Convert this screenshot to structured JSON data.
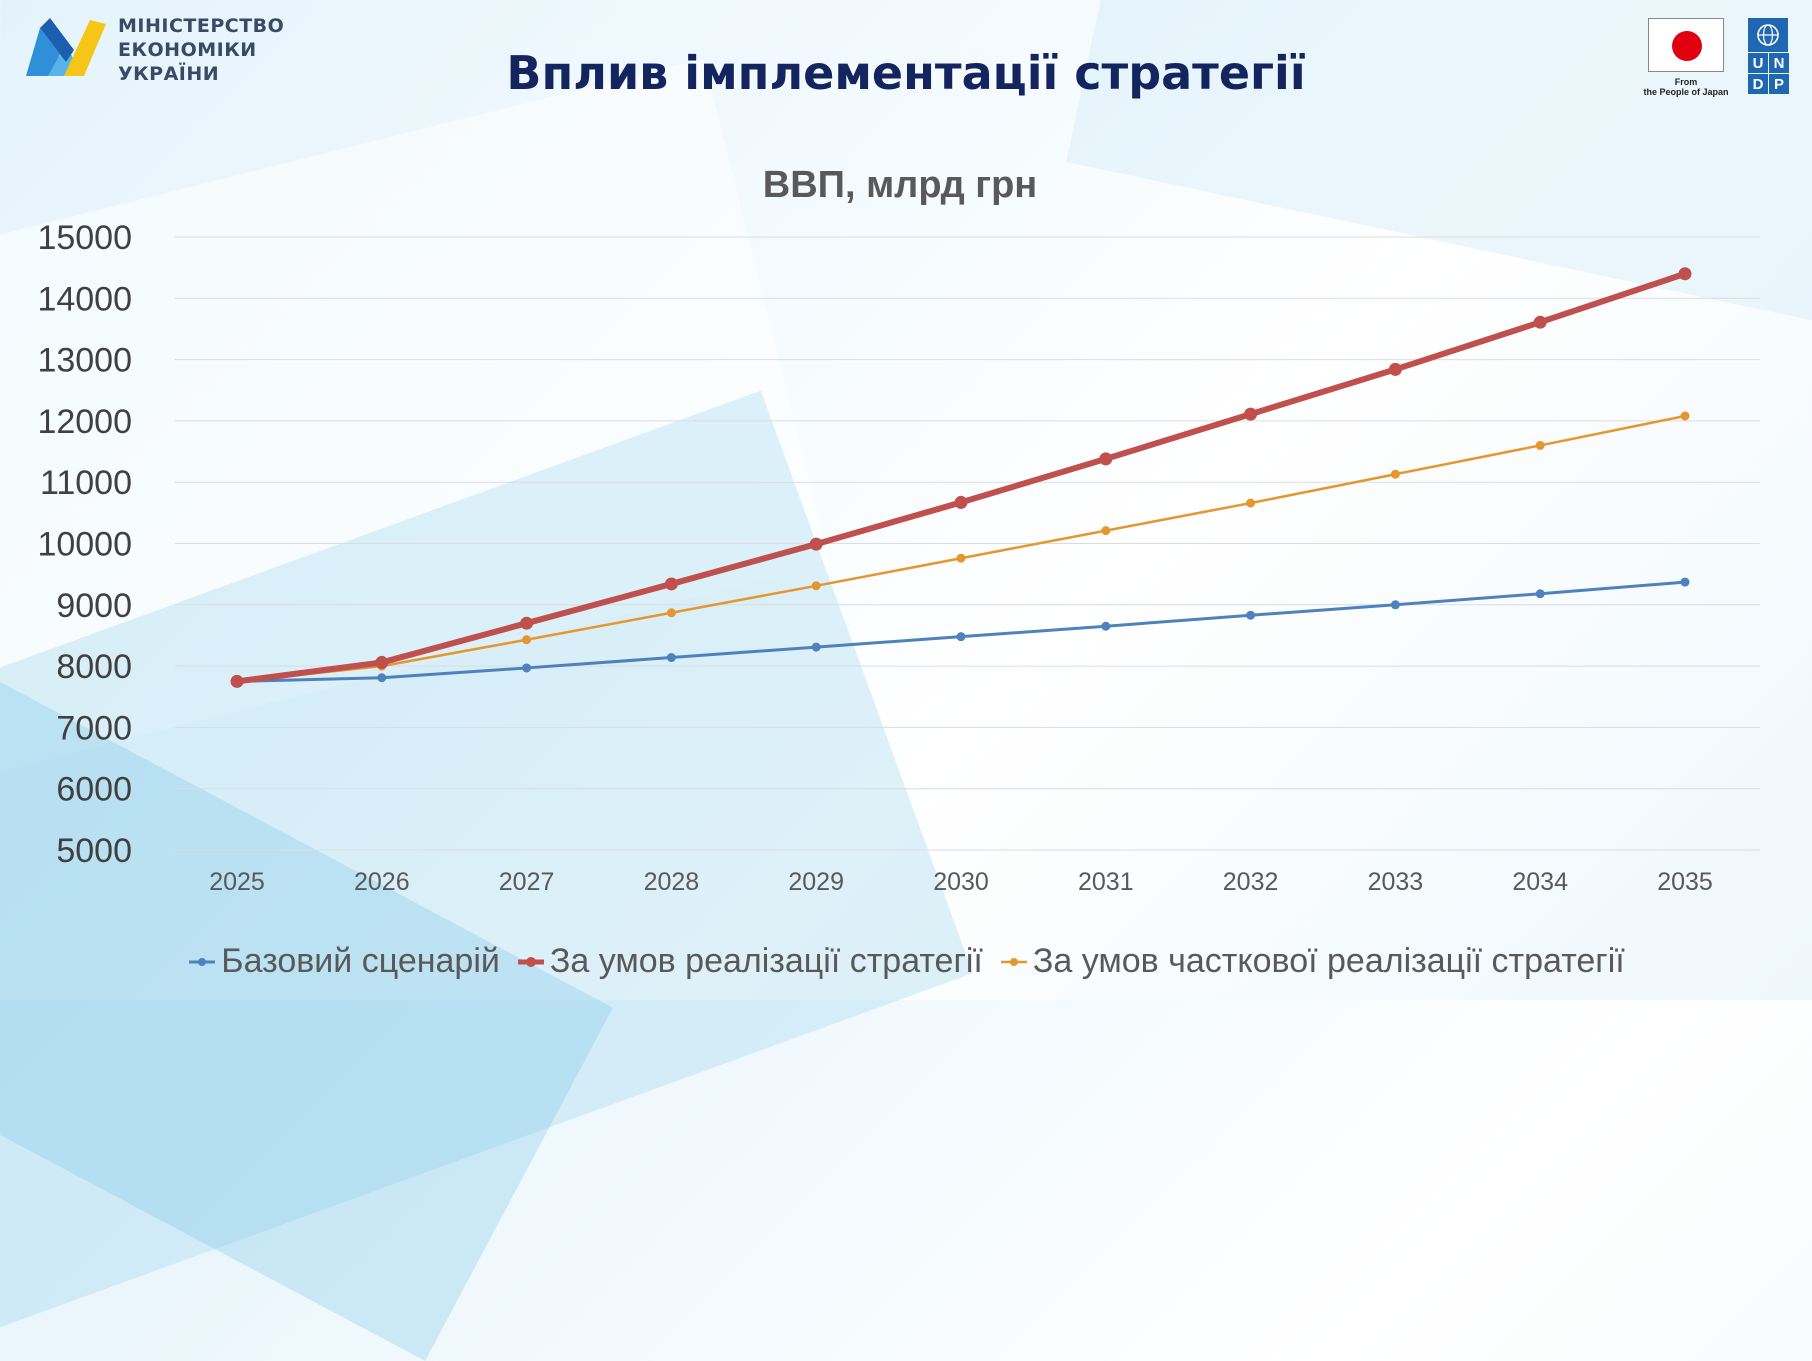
{
  "header": {
    "ministry_lines": [
      "МІНІСТЕРСТВО",
      "ЕКОНОМІКИ",
      "УКРАЇНИ"
    ],
    "title": "Вплив імплементації стратегії",
    "partner_caption_1": "From",
    "partner_caption_2": "the People of Japan",
    "undp_letters": [
      "U",
      "N",
      "D",
      "P"
    ]
  },
  "colors": {
    "title": "#13245e",
    "base": "#4f81bd",
    "full": "#c0504d",
    "partial": "#e5962f",
    "japan_red": "#e00010",
    "undp_blue": "#1f67b1"
  },
  "chart_data": {
    "type": "line",
    "title": "ВВП, млрд грн",
    "categories": [
      "2025",
      "2026",
      "2027",
      "2028",
      "2029",
      "2030",
      "2031",
      "2032",
      "2033",
      "2034",
      "2035"
    ],
    "ylim": [
      5000,
      15000
    ],
    "yticks": [
      5000,
      6000,
      7000,
      8000,
      9000,
      10000,
      11000,
      12000,
      13000,
      14000,
      15000
    ],
    "grid": true,
    "legend_position": "bottom",
    "series": [
      {
        "name": "Базовий сценарій",
        "color": "#4f81bd",
        "width": 3,
        "marker": 4,
        "values": [
          7750,
          7810,
          7970,
          8140,
          8310,
          8480,
          8650,
          8830,
          9000,
          9180,
          9370
        ]
      },
      {
        "name": "За умов реалізації стратегії",
        "color": "#c0504d",
        "width": 6,
        "marker": 6,
        "values": [
          7750,
          8060,
          8700,
          9340,
          9990,
          10670,
          11380,
          12110,
          12840,
          13610,
          14400
        ]
      },
      {
        "name": "За умов часткової реалізації стратегії",
        "color": "#e5962f",
        "width": 2.5,
        "marker": 4,
        "values": [
          7750,
          8000,
          8430,
          8870,
          9310,
          9760,
          10210,
          10660,
          11130,
          11600,
          12080
        ]
      }
    ]
  }
}
